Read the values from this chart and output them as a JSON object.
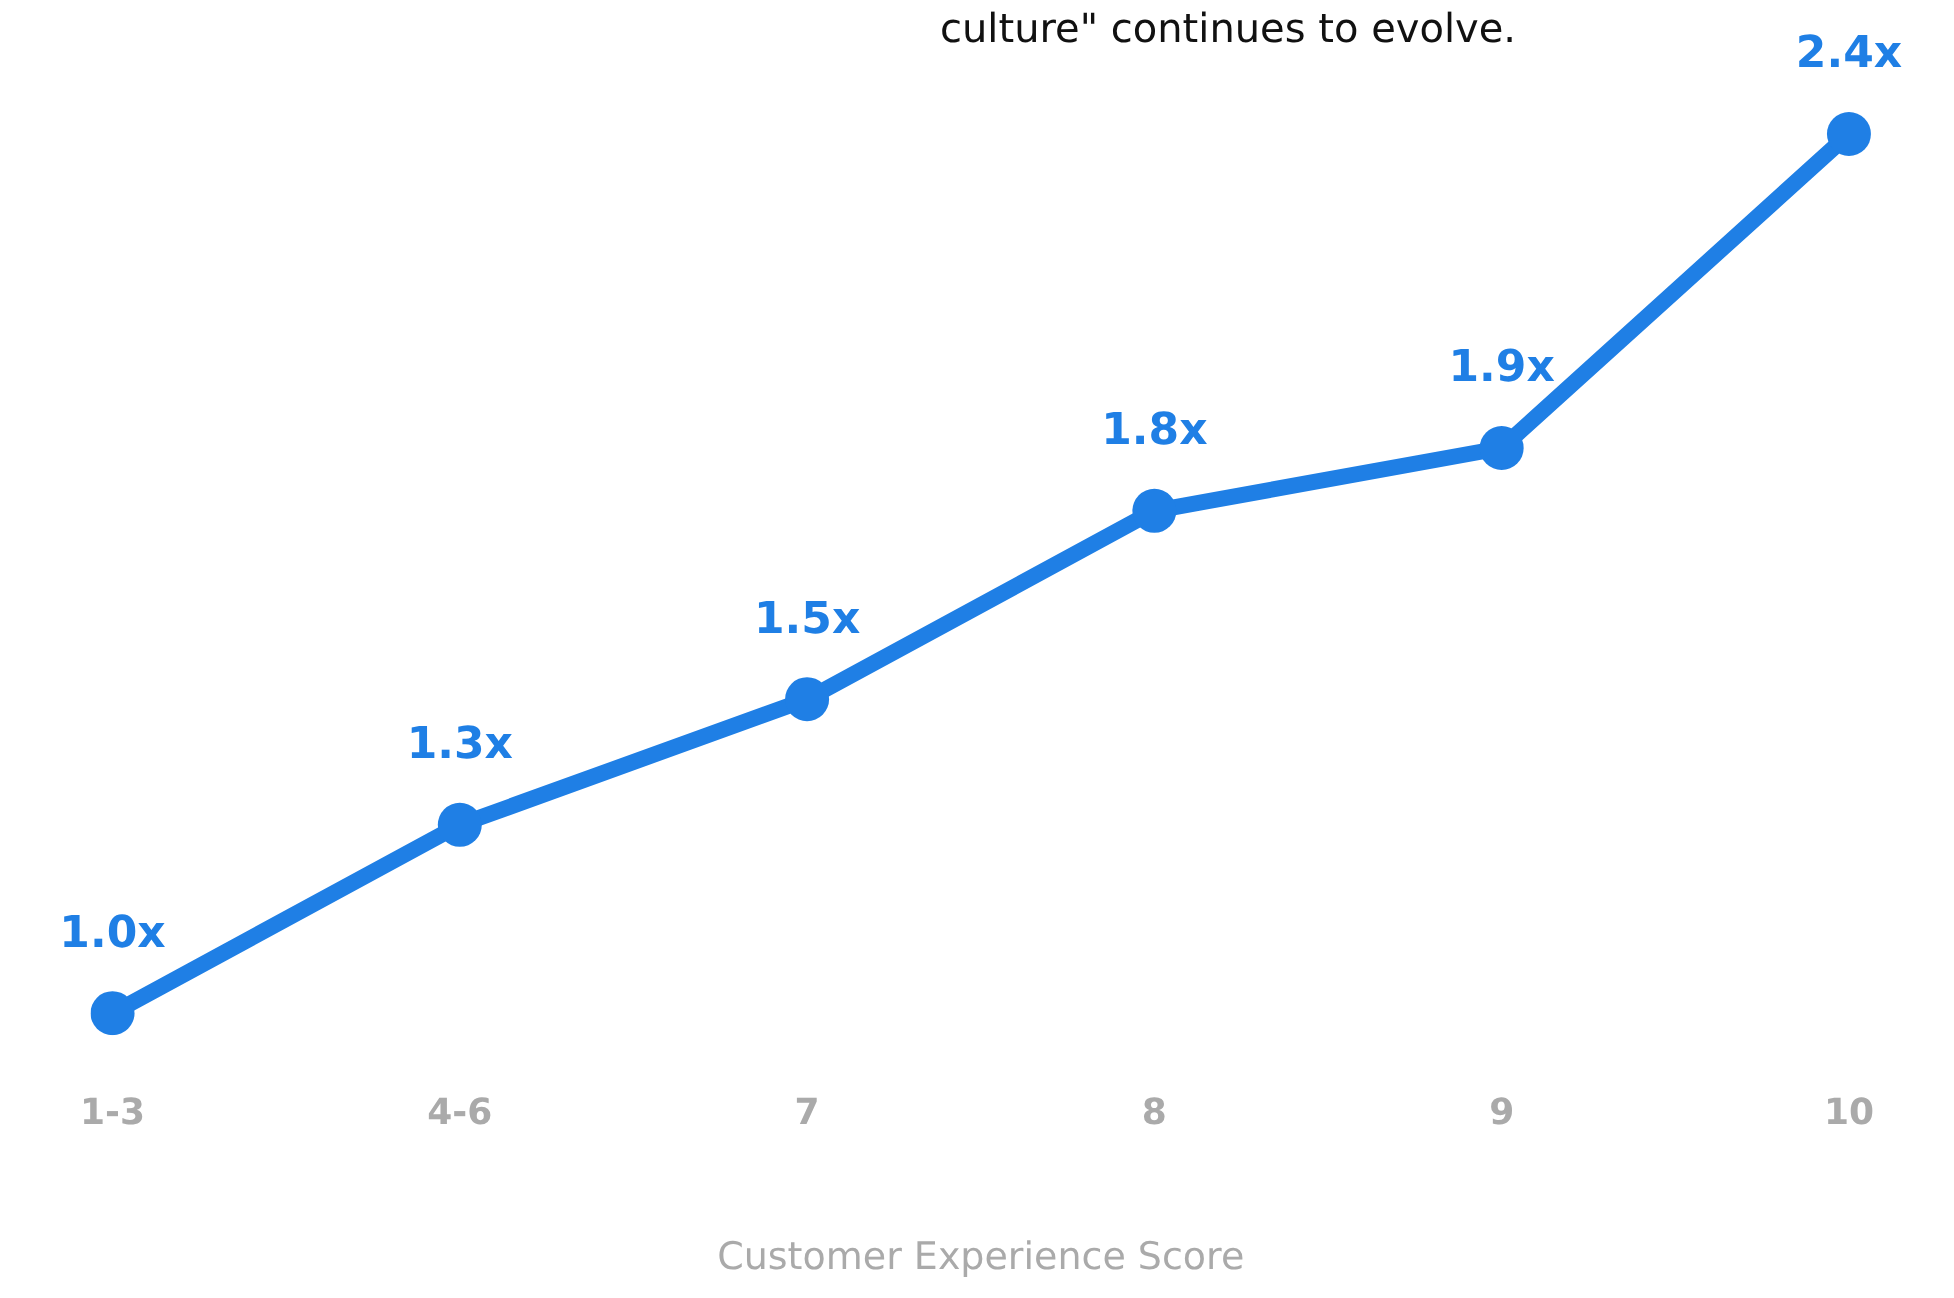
{
  "chart_data": {
    "type": "line",
    "xlabel": "Customer Experience Score",
    "annotations": [
      "culture\" continues to evolve."
    ],
    "categories": [
      "1-3",
      "4-6",
      "7",
      "8",
      "9",
      "10"
    ],
    "series": [
      {
        "color": "#1f7fe5",
        "values": [
          1.0,
          1.3,
          1.5,
          1.8,
          1.9,
          2.4
        ],
        "value_labels": [
          "1.0x",
          "1.3x",
          "1.5x",
          "1.8x",
          "1.9x",
          "2.4x"
        ]
      }
    ],
    "tick_labels": "x",
    "grid": false,
    "legend": false,
    "marker": "circle",
    "line_style": "solid"
  }
}
